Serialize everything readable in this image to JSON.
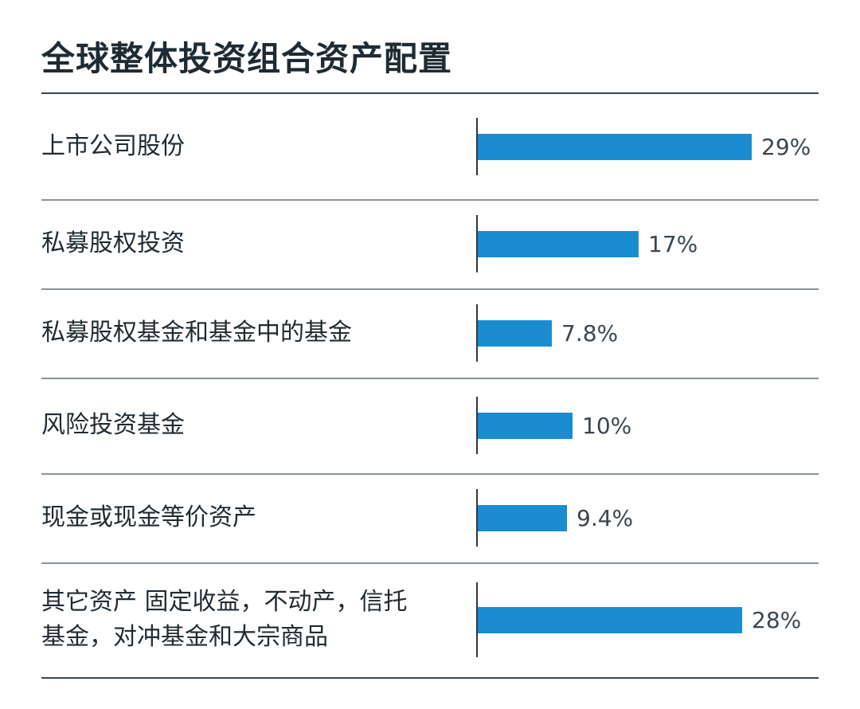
{
  "title": "全球整体投资组合资产配置",
  "colors": {
    "bar": "#1a8ccf",
    "text": "#1f2b33",
    "rule": "#3a4650"
  },
  "chart_data": {
    "type": "bar",
    "orientation": "horizontal",
    "title": "全球整体投资组合资产配置",
    "categories": [
      "上市公司股份",
      "私募股权投资",
      "私募股权基金和基金中的基金",
      "风险投资基金",
      "现金或现金等价资产",
      "其它资产 固定收益，不动产，信托\n基金，对冲基金和大宗商品"
    ],
    "values": [
      29,
      17,
      7.8,
      10,
      9.4,
      28
    ],
    "value_labels": [
      "29%",
      "17%",
      "7.8%",
      "10%",
      "9.4%",
      "28%"
    ],
    "unit": "%",
    "xlim": [
      0,
      29
    ],
    "grid": false,
    "legend": "none"
  }
}
